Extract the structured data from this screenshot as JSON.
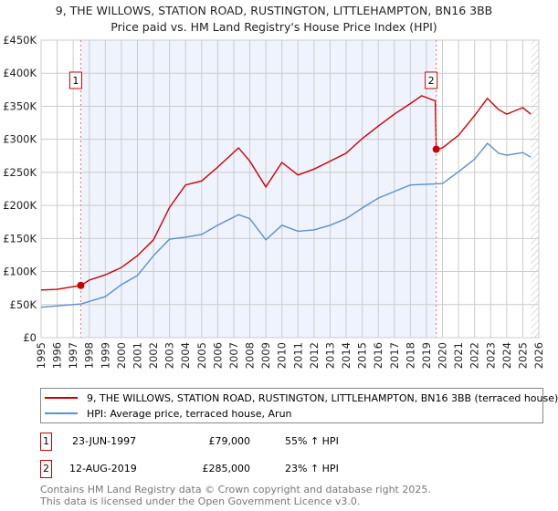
{
  "title": "9, THE WILLOWS, STATION ROAD, RUSTINGTON, LITTLEHAMPTON, BN16 3BB",
  "subtitle": "Price paid vs. HM Land Registry's House Price Index (HPI)",
  "colors": {
    "property": "#cc0000",
    "hpi": "#5b8fd4",
    "shade": "#eef3fd"
  },
  "chart_data": {
    "type": "line",
    "xlim": [
      1995,
      2026
    ],
    "ylim": [
      0,
      450000
    ],
    "x_ticks": [
      "1995",
      "1996",
      "1997",
      "1998",
      "1999",
      "2000",
      "2001",
      "2002",
      "2003",
      "2004",
      "2005",
      "2006",
      "2007",
      "2008",
      "2009",
      "2010",
      "2011",
      "2012",
      "2013",
      "2014",
      "2015",
      "2016",
      "2017",
      "2018",
      "2019",
      "2020",
      "2021",
      "2022",
      "2023",
      "2024",
      "2025",
      "2026"
    ],
    "y_ticks": [
      {
        "v": 0,
        "label": "£0"
      },
      {
        "v": 50000,
        "label": "£50K"
      },
      {
        "v": 100000,
        "label": "£100K"
      },
      {
        "v": 150000,
        "label": "£150K"
      },
      {
        "v": 200000,
        "label": "£200K"
      },
      {
        "v": 250000,
        "label": "£250K"
      },
      {
        "v": 300000,
        "label": "£300K"
      },
      {
        "v": 350000,
        "label": "£350K"
      },
      {
        "v": 400000,
        "label": "£400K"
      },
      {
        "v": 450000,
        "label": "£450K"
      }
    ],
    "series": [
      {
        "name": "9, THE WILLOWS, STATION ROAD, RUSTINGTON, LITTLEHAMPTON, BN16 3BB (terraced house)",
        "color": "#cc0000",
        "x": [
          1995,
          1996,
          1997.47,
          1998,
          1999,
          2000,
          2001,
          2002,
          2003,
          2004,
          2005,
          2006,
          2007.3,
          2008,
          2009,
          2010,
          2011,
          2012,
          2013,
          2014,
          2015,
          2016,
          2017,
          2018,
          2018.7,
          2019.55,
          2019.61,
          2020,
          2021,
          2022,
          2022.8,
          2023.5,
          2024,
          2025,
          2025.5
        ],
        "values": [
          72000,
          73000,
          79000,
          87000,
          95000,
          106000,
          124000,
          148000,
          197000,
          231000,
          237000,
          258000,
          287000,
          267000,
          228000,
          265000,
          246000,
          255000,
          267000,
          279000,
          301000,
          320000,
          338000,
          354000,
          366000,
          358000,
          285000,
          287000,
          306000,
          336000,
          362000,
          345000,
          338000,
          348000,
          338000
        ]
      },
      {
        "name": "HPI: Average price, terraced house, Arun",
        "color": "#5b8fd4",
        "x": [
          1995,
          1997.5,
          1999,
          2000,
          2001,
          2002,
          2003,
          2004,
          2005,
          2006,
          2007.3,
          2008,
          2009,
          2010,
          2011,
          2012,
          2013,
          2014,
          2015,
          2016,
          2017,
          2018,
          2019,
          2020,
          2021,
          2022,
          2022.8,
          2023.5,
          2024,
          2025,
          2025.5
        ],
        "values": [
          46000,
          51000,
          62000,
          80000,
          94000,
          124000,
          149000,
          152000,
          156000,
          170000,
          186000,
          180000,
          148000,
          170000,
          161000,
          163000,
          170000,
          180000,
          196000,
          211000,
          221000,
          231000,
          232000,
          233000,
          251000,
          270000,
          294000,
          279000,
          276000,
          280000,
          273000
        ]
      }
    ],
    "sales": [
      {
        "label": "1",
        "x": 1997.47,
        "value": 79000,
        "date": "23-JUN-1997",
        "price": "£79,000",
        "hpi": "55% ↑ HPI"
      },
      {
        "label": "2",
        "x": 2019.61,
        "value": 285000,
        "date": "12-AUG-2019",
        "price": "£285,000",
        "hpi": "23% ↑ HPI"
      }
    ],
    "forecast_from": 2025.5
  },
  "legend": {
    "property": "9, THE WILLOWS, STATION ROAD, RUSTINGTON, LITTLEHAMPTON, BN16 3BB (terraced house)",
    "hpi": "HPI: Average price, terraced house, Arun"
  },
  "footer": [
    "Contains HM Land Registry data © Crown copyright and database right 2025.",
    "This data is licensed under the Open Government Licence v3.0."
  ]
}
